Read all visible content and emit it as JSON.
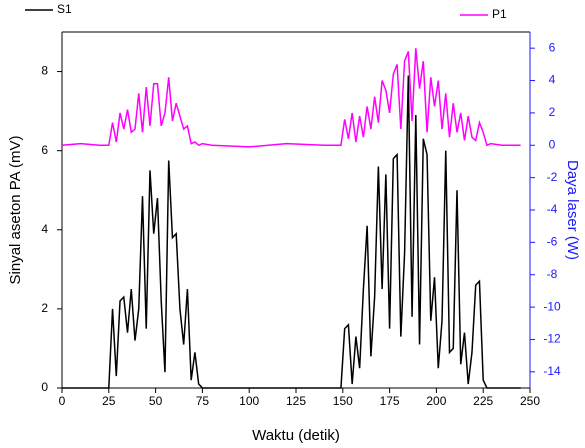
{
  "chart_data": {
    "type": "line",
    "xlabel": "Waktu (detik)",
    "ylabel": "Sinyal aseton PA (mV)",
    "y2label": "Daya laser (W)",
    "x": [
      0,
      10,
      20,
      25,
      27,
      29,
      31,
      33,
      35,
      37,
      39,
      41,
      43,
      45,
      47,
      49,
      51,
      53,
      55,
      57,
      59,
      61,
      63,
      65,
      67,
      69,
      71,
      73,
      75,
      80,
      100,
      120,
      140,
      149,
      151,
      153,
      155,
      157,
      159,
      161,
      163,
      165,
      167,
      169,
      171,
      173,
      175,
      177,
      179,
      181,
      183,
      185,
      187,
      189,
      191,
      193,
      195,
      197,
      199,
      201,
      203,
      205,
      207,
      209,
      211,
      213,
      215,
      217,
      219,
      221,
      223,
      225,
      227,
      229,
      235,
      245
    ],
    "series": [
      {
        "name": "S1",
        "color": "#000000",
        "axis": "y",
        "values": [
          0,
          0,
          0,
          0,
          2.0,
          0.3,
          2.2,
          2.3,
          1.4,
          2.5,
          1.2,
          2.0,
          4.85,
          1.5,
          5.5,
          3.9,
          4.8,
          2.2,
          0.4,
          5.75,
          3.8,
          3.9,
          2.0,
          1.1,
          2.5,
          0.2,
          0.9,
          0.1,
          0,
          0,
          0,
          0,
          0,
          0,
          1.5,
          1.6,
          0.1,
          1.3,
          0.5,
          2.5,
          4.1,
          0.8,
          2.3,
          5.6,
          2.5,
          5.4,
          1.5,
          5.8,
          5.9,
          1.3,
          3.4,
          7.9,
          1.8,
          6.9,
          1.1,
          6.3,
          5.9,
          1.7,
          2.8,
          0.5,
          1.7,
          6.0,
          0.9,
          1.0,
          5.0,
          0.6,
          1.4,
          0.1,
          0.9,
          2.6,
          2.7,
          0.2,
          0,
          0,
          0,
          0
        ]
      },
      {
        "name": "P1",
        "color": "#ff00ff",
        "axis": "y2",
        "values": [
          0,
          0.1,
          0,
          0,
          1.4,
          0.2,
          2.0,
          1.0,
          2.2,
          0.8,
          1.0,
          3.2,
          0.8,
          3.6,
          1.2,
          3.8,
          3.8,
          1.2,
          2.0,
          4.2,
          1.5,
          2.6,
          1.8,
          1.0,
          1.2,
          0.1,
          0.2,
          0,
          0.1,
          0,
          -0.1,
          0.1,
          0,
          0,
          1.6,
          0.4,
          2.0,
          0.2,
          1.8,
          0.5,
          2.4,
          1.0,
          3.0,
          1.4,
          4.0,
          3.4,
          2.0,
          4.4,
          5.0,
          1.0,
          5.2,
          5.8,
          1.5,
          6.0,
          3.5,
          5.2,
          0.8,
          4.2,
          2.4,
          4.0,
          1.0,
          3.2,
          0.5,
          2.6,
          0.8,
          2.0,
          0.3,
          1.8,
          0.5,
          0.3,
          1.4,
          0.8,
          0,
          0.1,
          0,
          0
        ]
      }
    ],
    "xlim": [
      0,
      250
    ],
    "xticks": [
      0,
      25,
      50,
      75,
      100,
      125,
      150,
      175,
      200,
      225,
      250
    ],
    "ylim": [
      0,
      9
    ],
    "yticks": [
      0,
      2,
      4,
      6,
      8
    ],
    "y2lim": [
      -15,
      7
    ],
    "y2ticks": [
      -14,
      -12,
      -10,
      -8,
      -6,
      -4,
      -2,
      0,
      2,
      4,
      6
    ],
    "y2color": "#1a1aff"
  }
}
